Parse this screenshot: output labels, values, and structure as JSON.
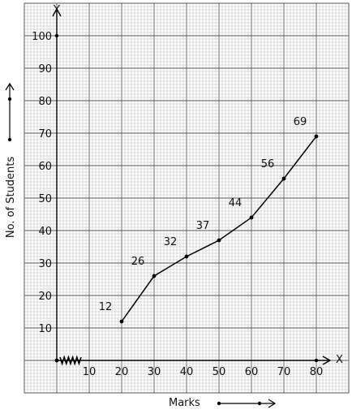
{
  "chart_data": {
    "type": "line",
    "title": "",
    "xlabel": "Marks",
    "ylabel": "No. of Students",
    "x_axis_letter": "X",
    "y_axis_letter": "Y",
    "x": [
      20,
      30,
      40,
      50,
      60,
      70,
      80
    ],
    "series": [
      {
        "values": [
          12,
          26,
          32,
          37,
          44,
          56,
          69
        ],
        "color": "#000000"
      }
    ],
    "point_labels": [
      "12",
      "26",
      "32",
      "37",
      "44",
      "56",
      "69"
    ],
    "x_ticks": [
      10,
      20,
      30,
      40,
      50,
      60,
      70,
      80
    ],
    "x_tick_labels": [
      "10",
      "20",
      "30",
      "40",
      "50",
      "60",
      "70",
      "80"
    ],
    "y_ticks": [
      10,
      20,
      30,
      40,
      50,
      60,
      70,
      80,
      90,
      100
    ],
    "y_tick_labels": [
      "10",
      "20",
      "30",
      "40",
      "50",
      "60",
      "70",
      "80",
      "90",
      "100"
    ],
    "xlim": [
      0,
      80
    ],
    "ylim": [
      0,
      100
    ],
    "x_axis_break": true,
    "grid": "graph-paper",
    "colors": {
      "grid_minor": "#bdbdbd",
      "grid_major": "#5a5a5a",
      "axis": "#000000"
    }
  }
}
